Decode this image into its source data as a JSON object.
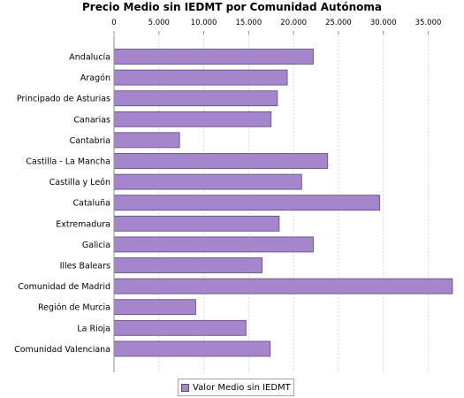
{
  "colors": {
    "bar_fill": "#a585cb",
    "bar_stroke": "#5b4a75",
    "grid": "#d9d9d9",
    "axis": "#8c8c8c",
    "text": "#000000"
  },
  "chart_data": {
    "type": "bar",
    "orientation": "horizontal",
    "title": "Precio Medio sin IEDMT por Comunidad Autónoma",
    "categories": [
      "Andalucía",
      "Aragón",
      "Principado de Asturias",
      "Canarias",
      "Cantabria",
      "Castilla - La Mancha",
      "Castilla y León",
      "Cataluña",
      "Extremadura",
      "Galicia",
      "Illes Balears",
      "Comunidad de Madrid",
      "Región de Murcia",
      "La Rioja",
      "Comunidad Valenciana"
    ],
    "series": [
      {
        "name": "Valor Medio sin IEDMT",
        "values": [
          22200,
          19300,
          18200,
          17500,
          7300,
          23800,
          20900,
          29600,
          18400,
          22200,
          16500,
          37700,
          9100,
          14700,
          17400
        ]
      }
    ],
    "xlim": [
      0,
      38000
    ],
    "x_ticks": [
      "0",
      "5.000",
      "10.000",
      "15.000",
      "20.000",
      "25.000",
      "30.000",
      "35.000"
    ],
    "x_tick_values": [
      0,
      5000,
      10000,
      15000,
      20000,
      25000,
      30000,
      35000
    ],
    "grid": true,
    "legend_position": "bottom"
  }
}
